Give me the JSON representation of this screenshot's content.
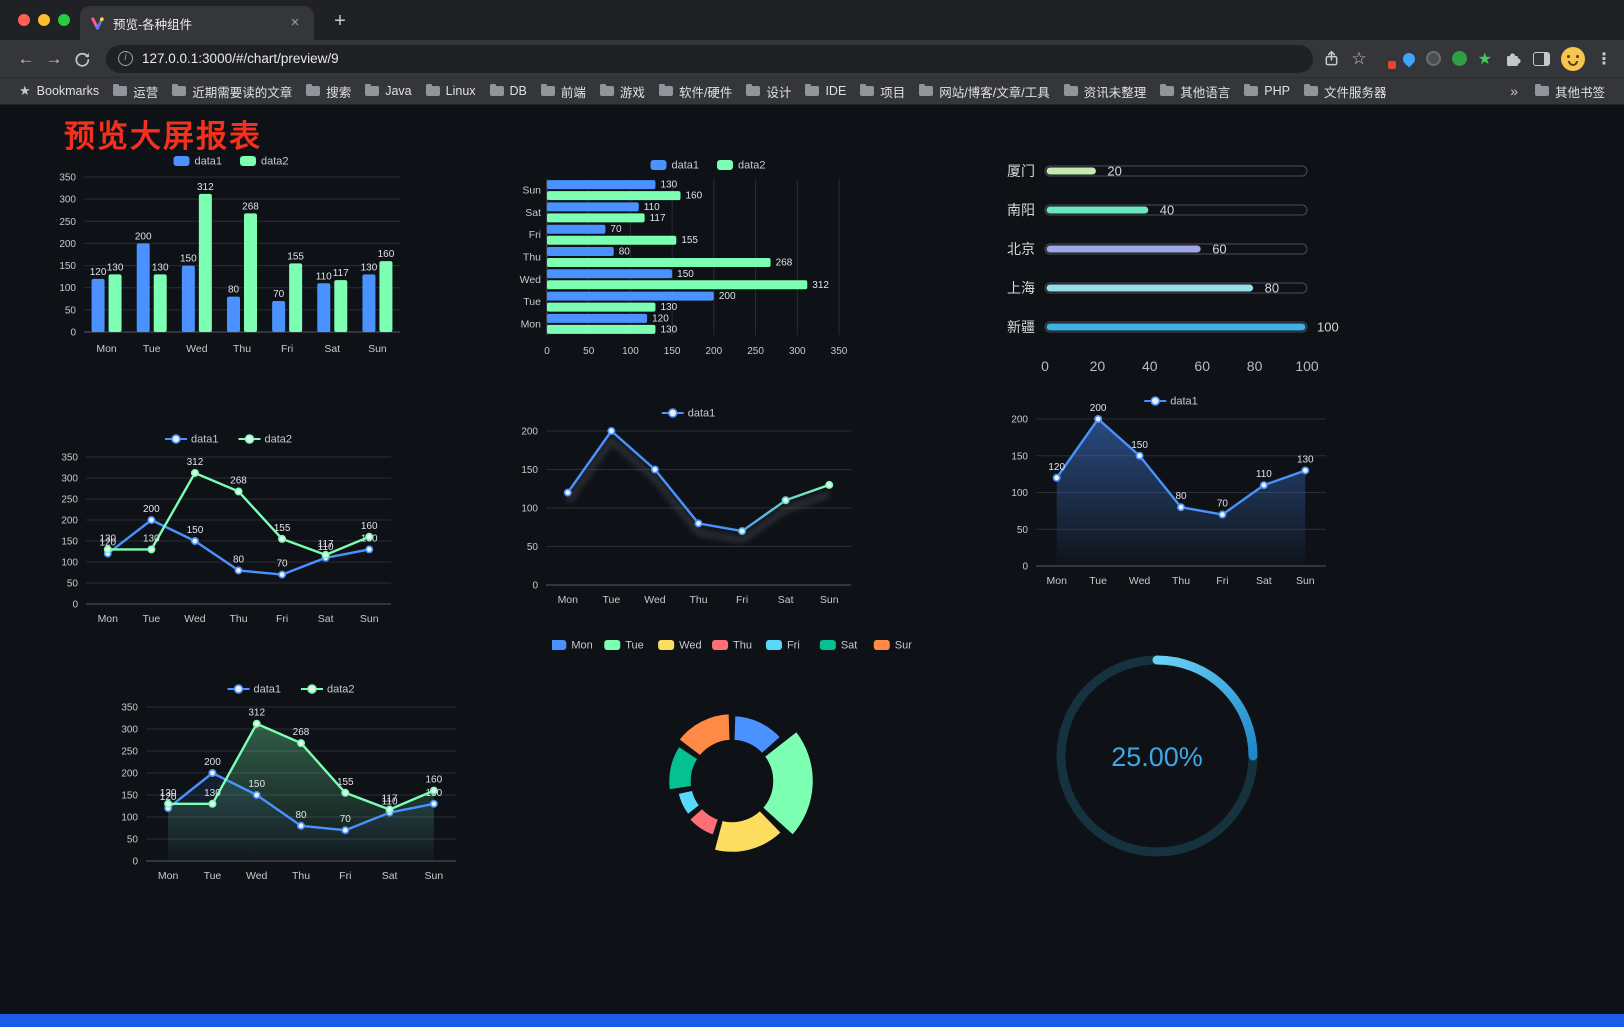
{
  "browser": {
    "tab": {
      "title": "预览-各种组件"
    },
    "address": {
      "url": "127.0.0.1:3000/#/chart/preview/9"
    },
    "bookmarks_bar": {
      "bookmarks_label": "Bookmarks",
      "items": [
        "运营",
        "近期需要读的文章",
        "搜索",
        "Java",
        "Linux",
        "DB",
        "前端",
        "游戏",
        "软件/硬件",
        "设计",
        "IDE",
        "项目",
        "网站/博客/文章/工具",
        "资讯未整理",
        "其他语言",
        "PHP",
        "文件服务器"
      ],
      "other_bookmarks_label": "其他书签"
    }
  },
  "icons": {
    "back": "←",
    "forward": "→",
    "menu": "⋮",
    "new_tab": "+",
    "close_tab": "×",
    "bookmark_star": "☆",
    "bookmarks_star": "★",
    "overflow": "»",
    "info": "i",
    "toolbar_extensions": [
      "colorful-grid-extension-icon",
      "blue-pin-extension-icon",
      "dark-circle-extension-icon",
      "green-circle-extension-icon",
      "green-star-extension-icon",
      "puzzle-extensions-icon",
      "side-panel-icon",
      "profile-avatar",
      "menu-icon"
    ]
  },
  "page": {
    "title": "预览大屏报表",
    "title_color": "#f5301d",
    "background": "#0e1116",
    "footer_bar_color": "#1a5ce8"
  },
  "chart_data": [
    {
      "id": "grouped-bar",
      "type": "bar",
      "orientation": "vertical",
      "categories": [
        "Mon",
        "Tue",
        "Wed",
        "Thu",
        "Fri",
        "Sat",
        "Sun"
      ],
      "series": [
        {
          "name": "data1",
          "color": "#4992ff",
          "values": [
            120,
            200,
            150,
            80,
            70,
            110,
            130
          ]
        },
        {
          "name": "data2",
          "color": "#7cffb2",
          "values": [
            130,
            130,
            312,
            268,
            155,
            117,
            160
          ]
        }
      ],
      "ylim": [
        0,
        350
      ],
      "ytick": 50,
      "legend_position": "top",
      "labels": true,
      "grid": true
    },
    {
      "id": "grouped-bar-horizontal",
      "type": "bar",
      "orientation": "horizontal",
      "categories": [
        "Mon",
        "Tue",
        "Wed",
        "Thu",
        "Fri",
        "Sat",
        "Sun"
      ],
      "series": [
        {
          "name": "data1",
          "color": "#4992ff",
          "values": [
            120,
            200,
            150,
            80,
            70,
            110,
            130
          ]
        },
        {
          "name": "data2",
          "color": "#7cffb2",
          "values": [
            130,
            130,
            312,
            268,
            155,
            117,
            160
          ]
        }
      ],
      "xlim": [
        0,
        350
      ],
      "xtick": 50,
      "legend_position": "top",
      "labels": true,
      "grid": true
    },
    {
      "id": "progress-bars",
      "type": "bar",
      "orientation": "horizontal",
      "categories": [
        "厦门",
        "南阳",
        "北京",
        "上海",
        "新疆"
      ],
      "values": [
        20,
        40,
        60,
        80,
        100
      ],
      "bar_colors": [
        "#c4ebad",
        "#6be6c1",
        "#a0a7e6",
        "#96dee8",
        "#3fb1e3"
      ],
      "xlim": [
        0,
        100
      ],
      "xticks": [
        0,
        20,
        40,
        60,
        80,
        100
      ],
      "labels": true
    },
    {
      "id": "two-series-line",
      "type": "line",
      "categories": [
        "Mon",
        "Tue",
        "Wed",
        "Thu",
        "Fri",
        "Sat",
        "Sun"
      ],
      "series": [
        {
          "name": "data1",
          "color": "#4992ff",
          "values": [
            120,
            200,
            150,
            80,
            70,
            110,
            130
          ]
        },
        {
          "name": "data2",
          "color": "#7cffb2",
          "values": [
            130,
            130,
            312,
            268,
            155,
            117,
            160
          ]
        }
      ],
      "ylim": [
        0,
        350
      ],
      "ytick": 50,
      "legend_position": "top",
      "labels": true,
      "grid": true
    },
    {
      "id": "single-line-gradient",
      "type": "line",
      "categories": [
        "Mon",
        "Tue",
        "Wed",
        "Thu",
        "Fri",
        "Sat",
        "Sun"
      ],
      "series": [
        {
          "name": "data1",
          "color": "#4992ff",
          "values": [
            120,
            200,
            150,
            80,
            70,
            110,
            130
          ]
        }
      ],
      "ylim": [
        0,
        200
      ],
      "ytick": 50,
      "legend_position": "top",
      "labels": false,
      "grid": true,
      "gradient_stroke_colors": [
        "#4992ff",
        "#7cffb2"
      ]
    },
    {
      "id": "single-line-area",
      "type": "area",
      "categories": [
        "Mon",
        "Tue",
        "Wed",
        "Thu",
        "Fri",
        "Sat",
        "Sun"
      ],
      "series": [
        {
          "name": "data1",
          "color": "#4992ff",
          "values": [
            120,
            200,
            150,
            80,
            70,
            110,
            130
          ]
        }
      ],
      "ylim": [
        0,
        200
      ],
      "ytick": 50,
      "legend_position": "top",
      "labels": true,
      "grid": true
    },
    {
      "id": "two-series-area",
      "type": "area",
      "categories": [
        "Mon",
        "Tue",
        "Wed",
        "Thu",
        "Fri",
        "Sat",
        "Sun"
      ],
      "series": [
        {
          "name": "data1",
          "color": "#4992ff",
          "values": [
            120,
            200,
            150,
            80,
            70,
            110,
            130
          ]
        },
        {
          "name": "data2",
          "color": "#7cffb2",
          "values": [
            130,
            130,
            312,
            268,
            155,
            117,
            160
          ]
        }
      ],
      "ylim": [
        0,
        350
      ],
      "ytick": 50,
      "legend_position": "top",
      "labels": true,
      "grid": true
    },
    {
      "id": "rose-donut-pie",
      "type": "pie",
      "categories": [
        "Mon",
        "Tue",
        "Wed",
        "Thu",
        "Fri",
        "Sat",
        "Sun"
      ],
      "values": [
        120,
        200,
        150,
        80,
        70,
        110,
        130
      ],
      "colors": [
        "#4992ff",
        "#7cffb2",
        "#fddd60",
        "#ff6e76",
        "#58d9f9",
        "#05c091",
        "#ff8a45"
      ],
      "legend_position": "top",
      "donut": true,
      "rose": true
    },
    {
      "id": "progress-gauge",
      "type": "gauge",
      "value": 25,
      "label": "25.00%",
      "ring_color": "#16323e",
      "arc_colors": [
        "#6ad2f6",
        "#1f86c9"
      ],
      "text_color": "#3da8e8"
    }
  ]
}
